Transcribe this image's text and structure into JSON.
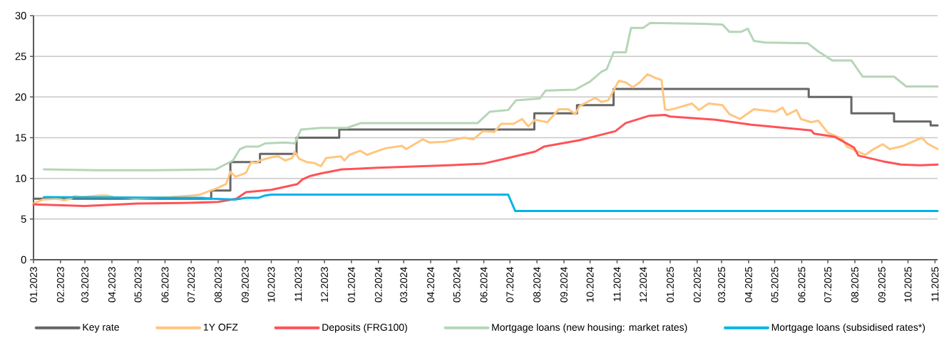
{
  "chart_data": {
    "type": "line",
    "xlim": [
      "2023-01-01",
      "2025-11-04"
    ],
    "ylim": [
      0,
      30
    ],
    "yticks": [
      0,
      5,
      10,
      15,
      20,
      25,
      30
    ],
    "grid": "y",
    "legend": "bottom",
    "marker": "none",
    "xticks": [
      {
        "value": "2023-01-01",
        "label": "01.2023"
      },
      {
        "value": "2023-02-01",
        "label": "02.2023"
      },
      {
        "value": "2023-03-01",
        "label": "03.2023"
      },
      {
        "value": "2023-04-01",
        "label": "04.2023"
      },
      {
        "value": "2023-05-01",
        "label": "05.2023"
      },
      {
        "value": "2023-06-01",
        "label": "06.2023"
      },
      {
        "value": "2023-07-01",
        "label": "07.2023"
      },
      {
        "value": "2023-08-01",
        "label": "08.2023"
      },
      {
        "value": "2023-09-01",
        "label": "09.2023"
      },
      {
        "value": "2023-10-01",
        "label": "10.2023"
      },
      {
        "value": "2023-11-01",
        "label": "11.2023"
      },
      {
        "value": "2023-12-01",
        "label": "12.2023"
      },
      {
        "value": "2024-01-01",
        "label": "01.2024"
      },
      {
        "value": "2024-02-01",
        "label": "02.2024"
      },
      {
        "value": "2024-03-01",
        "label": "03.2024"
      },
      {
        "value": "2024-04-01",
        "label": "04.2024"
      },
      {
        "value": "2024-05-01",
        "label": "05.2024"
      },
      {
        "value": "2024-06-01",
        "label": "06.2024"
      },
      {
        "value": "2024-07-01",
        "label": "07.2024"
      },
      {
        "value": "2024-08-01",
        "label": "08.2024"
      },
      {
        "value": "2024-09-01",
        "label": "09.2024"
      },
      {
        "value": "2024-10-01",
        "label": "10.2024"
      },
      {
        "value": "2024-11-01",
        "label": "11.2024"
      },
      {
        "value": "2024-12-01",
        "label": "12.2024"
      },
      {
        "value": "2025-01-01",
        "label": "01.2025"
      },
      {
        "value": "2025-02-01",
        "label": "02.2025"
      },
      {
        "value": "2025-03-01",
        "label": "03.2025"
      },
      {
        "value": "2025-04-01",
        "label": "04.2025"
      },
      {
        "value": "2025-05-01",
        "label": "05.2025"
      },
      {
        "value": "2025-06-01",
        "label": "06.2025"
      },
      {
        "value": "2025-07-01",
        "label": "07.2025"
      },
      {
        "value": "2025-08-01",
        "label": "08.2025"
      },
      {
        "value": "2025-09-01",
        "label": "09.2025"
      },
      {
        "value": "2025-10-01",
        "label": "10.2025"
      },
      {
        "value": "2025-11-01",
        "label": "11.2025"
      }
    ],
    "series": [
      {
        "name": "Key rate",
        "type": "step",
        "color": "#666666",
        "x": [
          "2023-01-01",
          "2023-07-24",
          "2023-08-15",
          "2023-09-18",
          "2023-10-30",
          "2023-12-18",
          "2024-07-29",
          "2024-09-16",
          "2024-10-28",
          "2025-06-09",
          "2025-07-28",
          "2025-09-15",
          "2025-10-27",
          "2025-11-04"
        ],
        "values": [
          7.5,
          8.5,
          12,
          13,
          15,
          16,
          18,
          19,
          21,
          20,
          18,
          17,
          16.5,
          16.5
        ]
      },
      {
        "name": "1Y OFZ",
        "color": "#ffc67f",
        "x": [
          "2023-01-01",
          "2023-01-12",
          "2023-01-28",
          "2023-02-05",
          "2023-02-13",
          "2023-02-17",
          "2023-02-26",
          "2023-03-18",
          "2023-03-26",
          "2023-04-03",
          "2023-04-20",
          "2023-04-28",
          "2023-05-15",
          "2023-06-08",
          "2023-07-03",
          "2023-07-11",
          "2023-07-21",
          "2023-07-31",
          "2023-08-10",
          "2023-08-15",
          "2023-08-21",
          "2023-08-29",
          "2023-09-02",
          "2023-09-08",
          "2023-09-14",
          "2023-09-18",
          "2023-10-01",
          "2023-10-09",
          "2023-10-17",
          "2023-10-25",
          "2023-10-28",
          "2023-11-02",
          "2023-11-11",
          "2023-11-19",
          "2023-11-27",
          "2023-12-03",
          "2023-12-20",
          "2023-12-24",
          "2023-12-30",
          "2024-01-11",
          "2024-01-19",
          "2024-02-09",
          "2024-02-28",
          "2024-03-04",
          "2024-03-23",
          "2024-03-31",
          "2024-04-17",
          "2024-05-09",
          "2024-05-20",
          "2024-05-31",
          "2024-06-13",
          "2024-06-21",
          "2024-07-05",
          "2024-07-15",
          "2024-07-22",
          "2024-07-30",
          "2024-08-13",
          "2024-08-26",
          "2024-09-06",
          "2024-09-14",
          "2024-09-19",
          "2024-10-07",
          "2024-10-14",
          "2024-10-22",
          "2024-11-03",
          "2024-11-11",
          "2024-11-19",
          "2024-11-27",
          "2024-12-06",
          "2024-12-16",
          "2024-12-22",
          "2024-12-26",
          "2024-12-30",
          "2025-01-07",
          "2025-01-26",
          "2025-02-03",
          "2025-02-14",
          "2025-03-02",
          "2025-03-10",
          "2025-03-22",
          "2025-04-07",
          "2025-05-02",
          "2025-05-10",
          "2025-05-15",
          "2025-05-26",
          "2025-05-31",
          "2025-06-12",
          "2025-06-20",
          "2025-07-01",
          "2025-07-17",
          "2025-07-23",
          "2025-08-13",
          "2025-08-21",
          "2025-09-02",
          "2025-09-10",
          "2025-09-26",
          "2025-10-04",
          "2025-10-17",
          "2025-10-23",
          "2025-11-04"
        ],
        "values": [
          6.9,
          7.4,
          7.5,
          7.3,
          7.5,
          7.8,
          7.7,
          7.9,
          7.9,
          7.7,
          7.6,
          7.5,
          7.6,
          7.7,
          7.9,
          8.0,
          8.4,
          8.8,
          9.3,
          10.8,
          10.2,
          10.5,
          10.7,
          12.0,
          11.9,
          12.2,
          12.6,
          12.7,
          12.2,
          12.5,
          13.3,
          12.4,
          12.0,
          11.9,
          11.5,
          12.5,
          12.7,
          12.2,
          12.9,
          13.4,
          12.9,
          13.7,
          14.0,
          13.6,
          14.8,
          14.4,
          14.5,
          15.0,
          14.8,
          15.8,
          15.7,
          16.7,
          16.7,
          17.3,
          16.4,
          17.2,
          16.9,
          18.5,
          18.5,
          17.9,
          18.9,
          19.9,
          19.4,
          19.6,
          22.0,
          21.8,
          21.2,
          21.8,
          22.8,
          22.3,
          22.1,
          18.5,
          18.4,
          18.6,
          19.2,
          18.4,
          19.2,
          19.0,
          17.9,
          17.3,
          18.5,
          18.2,
          18.7,
          17.8,
          18.4,
          17.3,
          16.9,
          17.1,
          15.6,
          14.9,
          13.9,
          12.9,
          13.5,
          14.2,
          13.6,
          14.0,
          14.4,
          15.0,
          14.3,
          13.6
        ]
      },
      {
        "name": "Deposits (FRG100)",
        "color": "#ff5257",
        "x": [
          "2023-01-01",
          "2023-03-01",
          "2023-05-01",
          "2023-07-01",
          "2023-08-01",
          "2023-08-22",
          "2023-09-02",
          "2023-10-01",
          "2023-10-31",
          "2023-11-06",
          "2023-11-15",
          "2023-11-27",
          "2023-12-21",
          "2024-01-31",
          "2024-04-22",
          "2024-05-31",
          "2024-06-29",
          "2024-07-30",
          "2024-08-09",
          "2024-09-19",
          "2024-10-30",
          "2024-11-11",
          "2024-12-08",
          "2024-12-26",
          "2025-01-01",
          "2025-02-22",
          "2025-04-04",
          "2025-06-12",
          "2025-06-15",
          "2025-07-09",
          "2025-07-31",
          "2025-08-05",
          "2025-09-02",
          "2025-09-23",
          "2025-10-15",
          "2025-11-04"
        ],
        "values": [
          6.8,
          6.6,
          6.9,
          7.0,
          7.1,
          7.5,
          8.3,
          8.6,
          9.3,
          9.9,
          10.3,
          10.6,
          11.1,
          11.3,
          11.6,
          11.8,
          12.5,
          13.3,
          13.9,
          14.7,
          15.8,
          16.8,
          17.7,
          17.8,
          17.6,
          17.2,
          16.6,
          15.9,
          15.5,
          15.1,
          13.8,
          12.8,
          12.1,
          11.7,
          11.6,
          11.7
        ]
      },
      {
        "name": "Mortgage loans (new housing: market rates)",
        "color": "#b5d6b7",
        "x": [
          "2023-01-13",
          "2023-03-15",
          "2023-05-15",
          "2023-07-29",
          "2023-08-18",
          "2023-08-26",
          "2023-09-02",
          "2023-09-16",
          "2023-09-24",
          "2023-10-17",
          "2023-10-28",
          "2023-11-04",
          "2023-11-27",
          "2023-12-27",
          "2024-01-12",
          "2024-05-25",
          "2024-06-08",
          "2024-06-29",
          "2024-07-08",
          "2024-08-04",
          "2024-08-11",
          "2024-09-14",
          "2024-10-01",
          "2024-10-14",
          "2024-10-20",
          "2024-10-28",
          "2024-11-11",
          "2024-11-17",
          "2024-12-01",
          "2024-12-09",
          "2025-02-09",
          "2025-03-02",
          "2025-03-10",
          "2025-03-23",
          "2025-03-31",
          "2025-04-07",
          "2025-04-20",
          "2025-06-08",
          "2025-06-20",
          "2025-07-06",
          "2025-07-28",
          "2025-08-10",
          "2025-09-15",
          "2025-09-29",
          "2025-11-04"
        ],
        "values": [
          11.1,
          11.0,
          11.0,
          11.1,
          12.2,
          13.6,
          13.9,
          13.9,
          14.3,
          14.4,
          14.3,
          16.0,
          16.2,
          16.2,
          16.8,
          16.8,
          18.2,
          18.4,
          19.6,
          19.8,
          20.8,
          20.9,
          21.9,
          23.1,
          23.4,
          25.5,
          25.5,
          28.5,
          28.5,
          29.1,
          29.0,
          28.9,
          28.0,
          28.0,
          28.4,
          26.9,
          26.7,
          26.6,
          25.6,
          24.5,
          24.5,
          22.5,
          22.5,
          21.3,
          21.3
        ]
      },
      {
        "name": "Mortgage loans (subsidised rates*)",
        "color": "#00b4e8",
        "x": [
          "2023-01-13",
          "2023-07-13",
          "2023-07-25",
          "2023-08-21",
          "2023-09-02",
          "2023-09-16",
          "2023-09-24",
          "2023-10-01",
          "2024-06-29",
          "2024-07-07",
          "2025-11-04"
        ],
        "values": [
          7.7,
          7.6,
          7.5,
          7.4,
          7.6,
          7.6,
          7.9,
          8.0,
          8.0,
          6.0,
          6.0
        ]
      }
    ]
  }
}
